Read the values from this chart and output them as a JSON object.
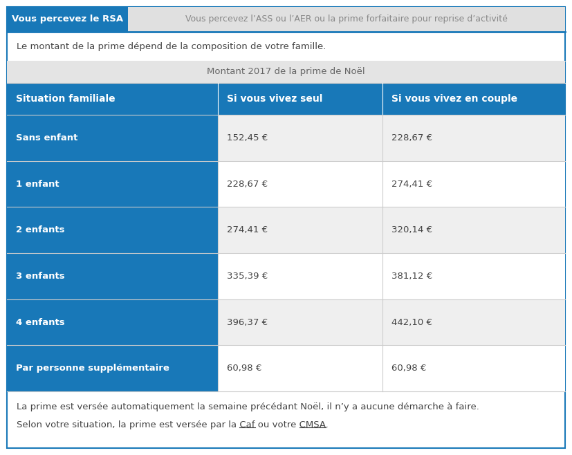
{
  "tab1_label": "Vous percevez le RSA",
  "tab2_label": "Vous percevez l’ASS ou l’AER ou la prime forfaitaire pour reprise d’activité",
  "intro_text": "Le montant de la prime dépend de la composition de votre famille.",
  "table_title": "Montant 2017 de la prime de Noël",
  "col_headers": [
    "Situation familiale",
    "Si vous vivez seul",
    "Si vous vivez en couple"
  ],
  "rows": [
    [
      "Sans enfant",
      "152,45 €",
      "228,67 €"
    ],
    [
      "1 enfant",
      "228,67 €",
      "274,41 €"
    ],
    [
      "2 enfants",
      "274,41 €",
      "320,14 €"
    ],
    [
      "3 enfants",
      "335,39 €",
      "381,12 €"
    ],
    [
      "4 enfants",
      "396,37 €",
      "442,10 €"
    ],
    [
      "Par personne supplémentaire",
      "60,98 €",
      "60,98 €"
    ]
  ],
  "footer_line1": "La prime est versée automatiquement la semaine précédant Noël, il n’y a aucune démarche à faire.",
  "footer_line2": "Selon votre situation, la prime est versée par la Caf ou votre CMSA.",
  "blue_color": "#1878b8",
  "tab_active_bg": "#1878b8",
  "tab_inactive_bg": "#e0e0e0",
  "tab_inactive_text": "#888888",
  "header_row_bg": "#1878b8",
  "row_odd_bg": "#efefef",
  "row_even_bg": "#ffffff",
  "row_first_col_bg": "#1878b8",
  "border_color": "#cccccc",
  "outer_border_color": "#1878b8",
  "table_title_bg": "#e4e4e4",
  "table_title_text": "#666666",
  "body_text_color": "#444444",
  "footer_text_color": "#444444",
  "figsize": [
    8.27,
    6.58
  ],
  "dpi": 100
}
